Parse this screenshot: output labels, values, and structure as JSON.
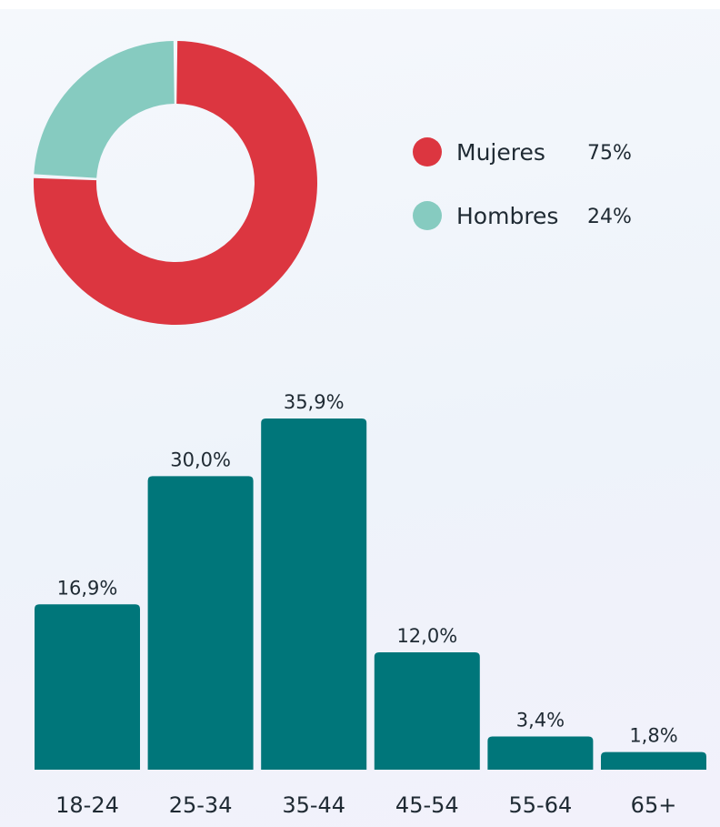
{
  "colors": {
    "female": "#dc3640",
    "male": "#86cbc0",
    "bars": "#00767a",
    "text": "#1f2a33"
  },
  "chart_data": [
    {
      "type": "pie",
      "variant": "donut",
      "legend_position": "right",
      "slices": [
        {
          "label": "Mujeres",
          "value": 75,
          "value_label": "75%",
          "color": "#dc3640"
        },
        {
          "label": "Hombres",
          "value": 24,
          "value_label": "24%",
          "color": "#86cbc0"
        }
      ]
    },
    {
      "type": "bar",
      "categories": [
        "18-24",
        "25-34",
        "35-44",
        "45-54",
        "55-64",
        "65+"
      ],
      "values": [
        16.9,
        30.0,
        35.9,
        12.0,
        3.4,
        1.8
      ],
      "value_labels": [
        "16,9%",
        "30,0%",
        "35,9%",
        "12,0%",
        "3,4%",
        "1,8%"
      ],
      "ylim": [
        0,
        35.9
      ],
      "grid": false,
      "color": "#00767a"
    }
  ]
}
